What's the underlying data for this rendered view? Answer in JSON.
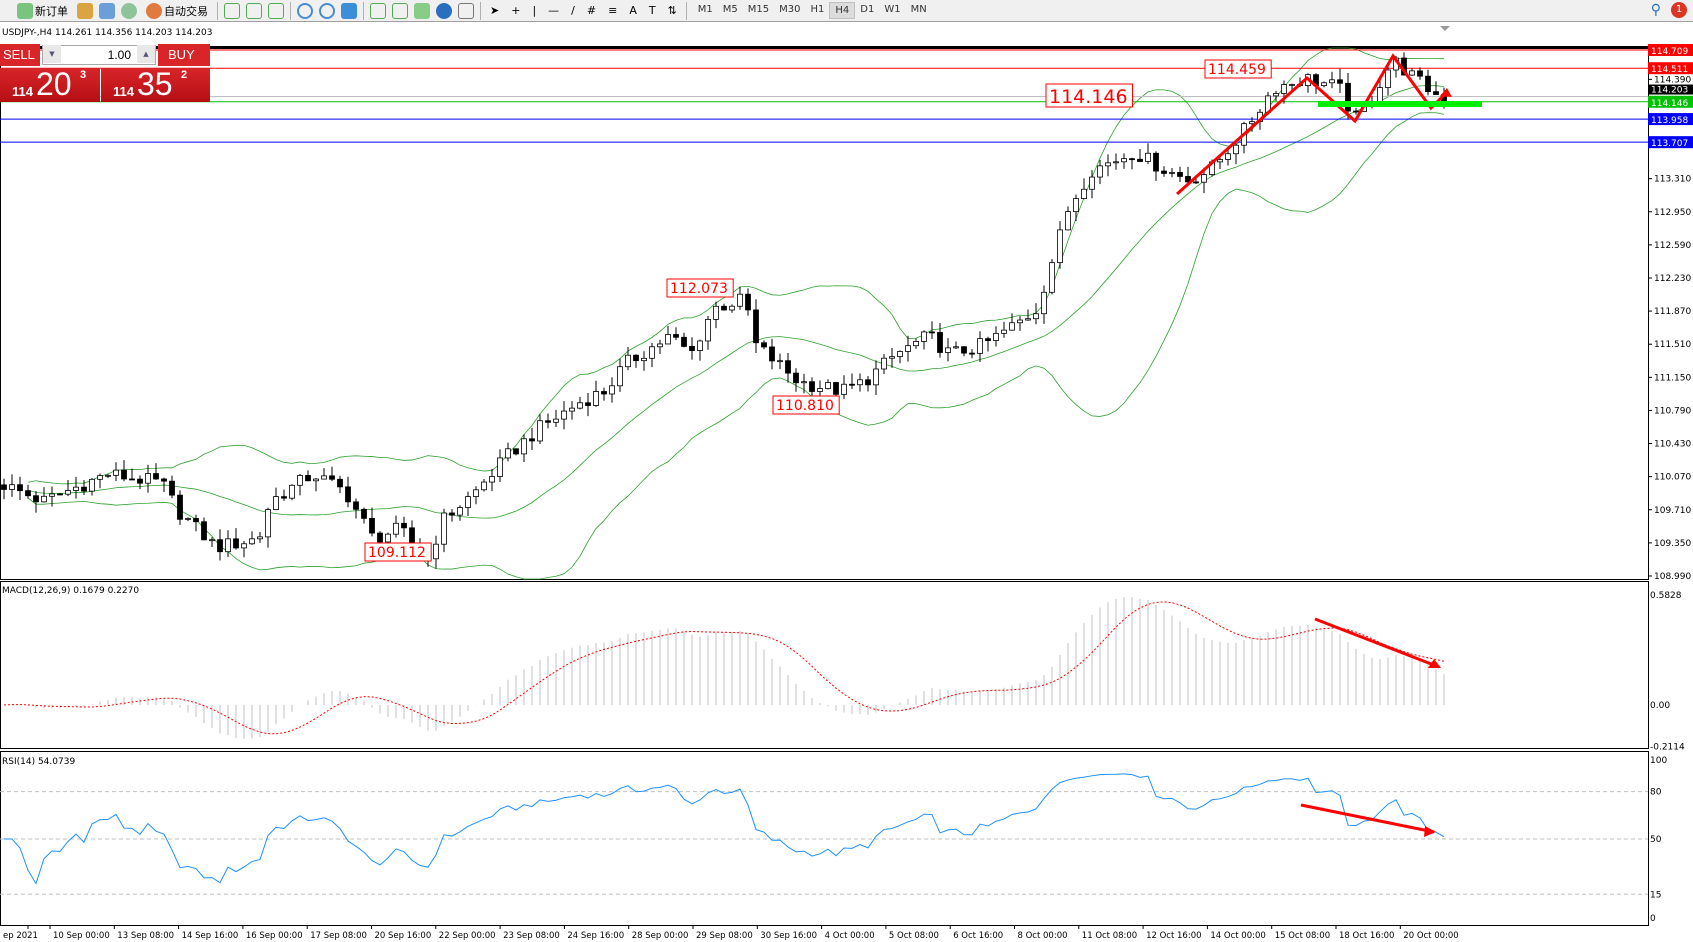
{
  "toolbar": {
    "new_order": "新订单",
    "auto_trading": "自动交易",
    "timeframes": [
      "M1",
      "M5",
      "M15",
      "M30",
      "H1",
      "H4",
      "D1",
      "W1",
      "MN"
    ],
    "active_timeframe": "H4",
    "notifications": "1"
  },
  "chart": {
    "symbol_line": "USDJPY-,H4  114.261 114.356 114.203 114.203",
    "lot": "1.00",
    "sell_label": "SELL",
    "buy_label": "BUY",
    "sell_price": {
      "small": "114",
      "big": "20",
      "pip": "3"
    },
    "buy_price": {
      "small": "114",
      "big": "35",
      "pip": "2"
    },
    "price_axis": [
      "114.390",
      "113.310",
      "112.950",
      "112.590",
      "112.230",
      "111.870",
      "111.510",
      "111.150",
      "110.790",
      "110.430",
      "110.070",
      "109.710",
      "109.350",
      "108.990"
    ],
    "hlines": [
      {
        "price": 114.709,
        "label": "114.709",
        "color": "#ff0000"
      },
      {
        "price": 114.511,
        "label": "114.511",
        "color": "#ff0000"
      },
      {
        "price": 114.146,
        "label": "114.146",
        "color": "#00c000"
      },
      {
        "price": 113.958,
        "label": "113.958",
        "color": "#0000ff"
      },
      {
        "price": 113.707,
        "label": "113.707",
        "color": "#0000ff"
      }
    ],
    "current_price": {
      "price": 114.203,
      "label": "114.203"
    },
    "annotations": [
      "109.112",
      "110.810",
      "112.073",
      "114.459",
      "114.146"
    ],
    "close_anchors": [
      [
        0,
        110.0
      ],
      [
        43,
        109.8
      ],
      [
        108,
        110.1
      ],
      [
        162,
        110.0
      ],
      [
        178,
        109.7
      ],
      [
        216,
        109.3
      ],
      [
        259,
        109.4
      ],
      [
        270,
        109.8
      ],
      [
        313,
        110.1
      ],
      [
        346,
        109.9
      ],
      [
        373,
        109.4
      ],
      [
        400,
        109.5
      ],
      [
        427,
        109.15
      ],
      [
        443,
        109.6
      ],
      [
        475,
        109.9
      ],
      [
        508,
        110.3
      ],
      [
        540,
        110.6
      ],
      [
        583,
        110.9
      ],
      [
        605,
        111.0
      ],
      [
        626,
        111.3
      ],
      [
        670,
        111.6
      ],
      [
        691,
        111.4
      ],
      [
        713,
        111.9
      ],
      [
        745,
        112.0
      ],
      [
        756,
        111.5
      ],
      [
        799,
        111.1
      ],
      [
        842,
        111.0
      ],
      [
        864,
        111.1
      ],
      [
        896,
        111.4
      ],
      [
        929,
        111.6
      ],
      [
        950,
        111.4
      ],
      [
        983,
        111.5
      ],
      [
        1026,
        111.8
      ],
      [
        1037,
        111.9
      ],
      [
        1069,
        113.0
      ],
      [
        1091,
        113.4
      ],
      [
        1134,
        113.6
      ],
      [
        1166,
        113.4
      ],
      [
        1188,
        113.3
      ],
      [
        1210,
        113.4
      ],
      [
        1242,
        113.8
      ],
      [
        1274,
        114.3
      ],
      [
        1307,
        114.4
      ],
      [
        1339,
        114.3
      ],
      [
        1355,
        113.95
      ],
      [
        1372,
        114.2
      ],
      [
        1393,
        114.6
      ],
      [
        1404,
        114.5
      ],
      [
        1426,
        114.3
      ],
      [
        1440,
        114.2
      ]
    ]
  },
  "macd": {
    "label": "MACD(12,26,9) 0.1679 0.2270",
    "axis": [
      "0.5828",
      "0.00",
      "-0.2114"
    ]
  },
  "rsi": {
    "label": "RSI(14) 54.0739",
    "axis": [
      "100",
      "80",
      "50",
      "15",
      "0"
    ]
  },
  "time_axis": [
    "ep 2021",
    "10 Sep 00:00",
    "13 Sep 08:00",
    "14 Sep 16:00",
    "16 Sep 00:00",
    "17 Sep 08:00",
    "20 Sep 16:00",
    "22 Sep 00:00",
    "23 Sep 08:00",
    "24 Sep 16:00",
    "28 Sep 00:00",
    "29 Sep 08:00",
    "30 Sep 16:00",
    "4 Oct 00:00",
    "5 Oct 08:00",
    "6 Oct 16:00",
    "8 Oct 00:00",
    "11 Oct 08:00",
    "12 Oct 16:00",
    "14 Oct 00:00",
    "15 Oct 08:00",
    "18 Oct 16:00",
    "20 Oct 00:00"
  ],
  "colors": {
    "band": "#2ca02c",
    "arrow": "#ff0000",
    "bar": "#c0c0c0",
    "rsi": "#1e90ff",
    "sell_buy": "#d8252a"
  }
}
